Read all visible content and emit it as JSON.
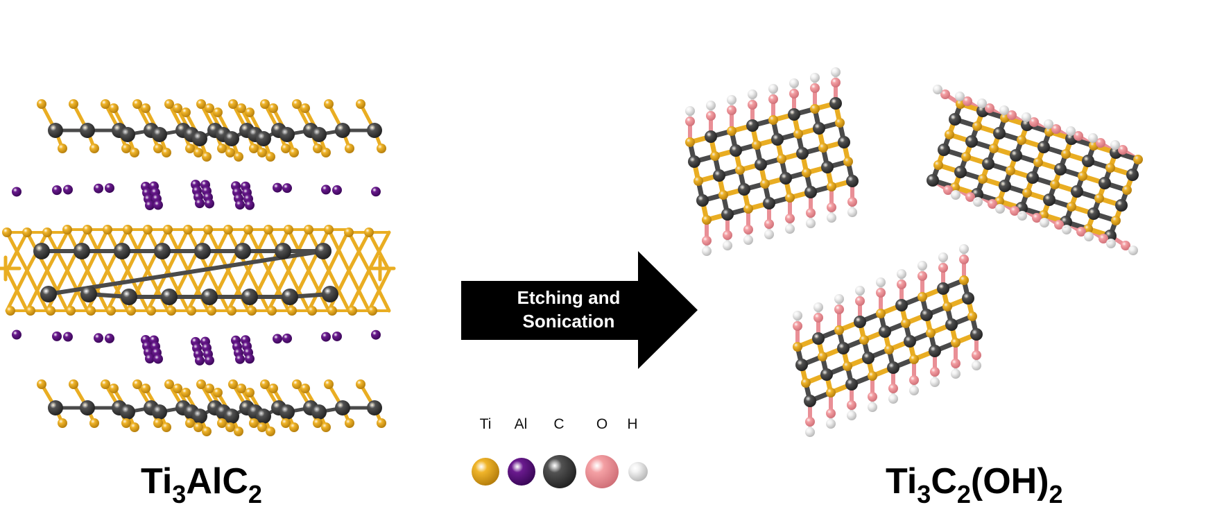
{
  "process_label": [
    "Etching and",
    "Sonication"
  ],
  "reactant_formula": {
    "parts": [
      [
        "Ti",
        "n"
      ],
      [
        "3",
        "s"
      ],
      [
        "AlC",
        "n"
      ],
      [
        "2",
        "s"
      ]
    ]
  },
  "product_formula": {
    "parts": [
      [
        "Ti",
        "n"
      ],
      [
        "3",
        "s"
      ],
      [
        "C",
        "n"
      ],
      [
        "2",
        "s"
      ],
      [
        "(OH)",
        "n"
      ],
      [
        "2",
        "s"
      ]
    ]
  },
  "legend": [
    {
      "label": "Ti",
      "color": "#f0b52a",
      "dark": "#b57e0c"
    },
    {
      "label": "Al",
      "color": "#6a1a8e",
      "dark": "#3a0758"
    },
    {
      "label": "C",
      "color": "#525252",
      "dark": "#222222"
    },
    {
      "label": "O",
      "color": "#f4a0a4",
      "dark": "#d07078"
    },
    {
      "label": "H",
      "color": "#f2f2f2",
      "dark": "#b8b8b8"
    }
  ]
}
